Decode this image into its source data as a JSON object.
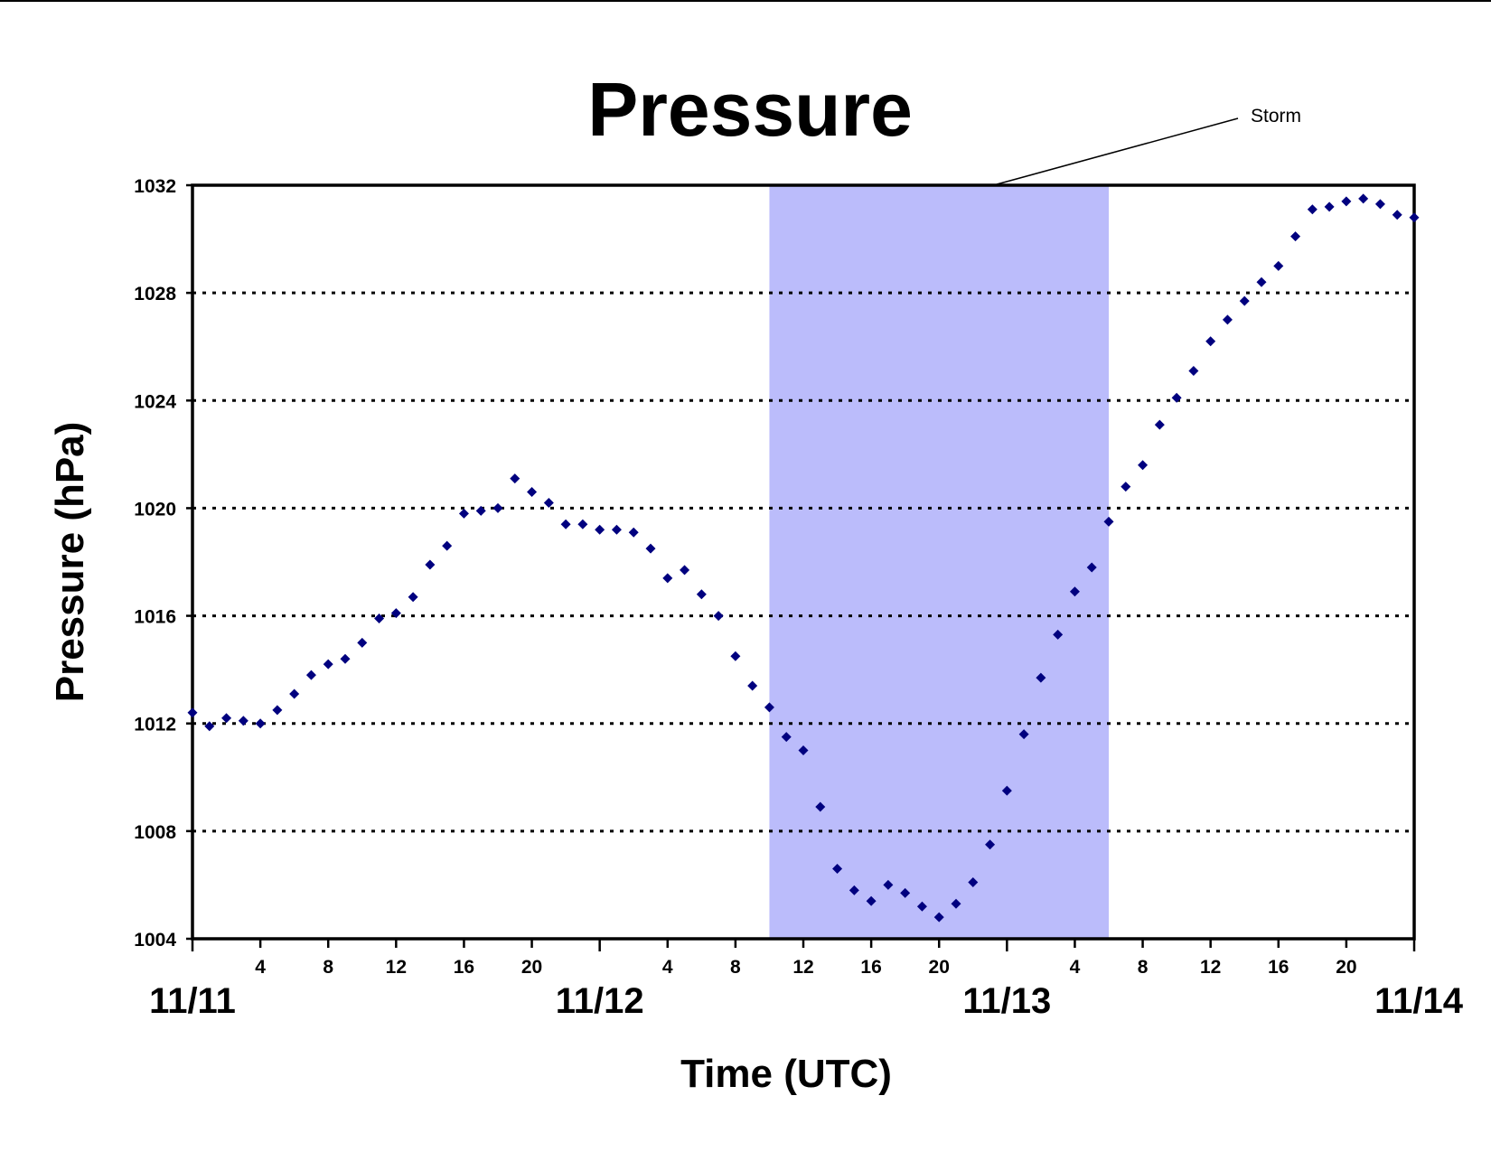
{
  "chart_data": {
    "type": "scatter",
    "title": "Pressure",
    "xlabel": "Time (UTC)",
    "ylabel": "Pressure (hPa)",
    "x_unit": "hours since 11/11 00 UTC",
    "ylim": [
      1004,
      1032
    ],
    "xlim": [
      0,
      72
    ],
    "yticks": [
      1004,
      1008,
      1012,
      1016,
      1020,
      1024,
      1028,
      1032
    ],
    "hour_ticks": [
      {
        "x": 4,
        "label": "4"
      },
      {
        "x": 8,
        "label": "8"
      },
      {
        "x": 12,
        "label": "12"
      },
      {
        "x": 16,
        "label": "16"
      },
      {
        "x": 20,
        "label": "20"
      },
      {
        "x": 28,
        "label": "4"
      },
      {
        "x": 32,
        "label": "8"
      },
      {
        "x": 36,
        "label": "12"
      },
      {
        "x": 40,
        "label": "16"
      },
      {
        "x": 44,
        "label": "20"
      },
      {
        "x": 52,
        "label": "4"
      },
      {
        "x": 56,
        "label": "8"
      },
      {
        "x": 60,
        "label": "12"
      },
      {
        "x": 64,
        "label": "16"
      },
      {
        "x": 68,
        "label": "20"
      }
    ],
    "date_ticks": [
      {
        "x": 0,
        "label": "11/11"
      },
      {
        "x": 24,
        "label": "11/12"
      },
      {
        "x": 48,
        "label": "11/13"
      },
      {
        "x": 72,
        "label": "11/14"
      }
    ],
    "grid": "horizontal dotted",
    "highlight_band": {
      "x_start": 34,
      "x_end": 54,
      "color": "#bbbcfb",
      "label": "Storm"
    },
    "marker_color": "#00007f",
    "series": [
      {
        "x": [
          0,
          1,
          2,
          3,
          4,
          5,
          6,
          7,
          8,
          9,
          10,
          11,
          12,
          13,
          14,
          15,
          16,
          17,
          18,
          19,
          20,
          21,
          22,
          23,
          24,
          25,
          26,
          27,
          28,
          29,
          30,
          31,
          32,
          33,
          34,
          35,
          36,
          37,
          38,
          39,
          40,
          41,
          42,
          43,
          44,
          45,
          46,
          47,
          48,
          49,
          50,
          51,
          52,
          53,
          54,
          55,
          56,
          57,
          58,
          59,
          60,
          61,
          62,
          63,
          64,
          65,
          66,
          67,
          68,
          69,
          70,
          71,
          72
        ],
        "y": [
          1012.4,
          1011.9,
          1012.2,
          1012.1,
          1012.0,
          1012.5,
          1013.1,
          1013.8,
          1014.2,
          1014.4,
          1015.0,
          1015.9,
          1016.1,
          1016.7,
          1017.9,
          1018.6,
          1019.8,
          1019.9,
          1020.0,
          1021.1,
          1020.6,
          1020.2,
          1019.4,
          1019.4,
          1019.2,
          1019.2,
          1019.1,
          1018.5,
          1017.4,
          1017.7,
          1016.8,
          1016.0,
          1014.5,
          1013.4,
          1012.6,
          1011.5,
          1011.0,
          1008.9,
          1006.6,
          1005.8,
          1005.4,
          1006.0,
          1005.7,
          1005.2,
          1004.8,
          1005.3,
          1006.1,
          1007.5,
          1009.5,
          1011.6,
          1013.7,
          1015.3,
          1016.9,
          1017.8,
          1019.5,
          1020.8,
          1021.6,
          1023.1,
          1024.1,
          1025.1,
          1026.2,
          1027.0,
          1027.7,
          1028.4,
          1029.0,
          1030.1,
          1031.1,
          1031.2,
          1031.4,
          1031.5,
          1031.3,
          1030.9,
          1030.8
        ]
      }
    ]
  }
}
